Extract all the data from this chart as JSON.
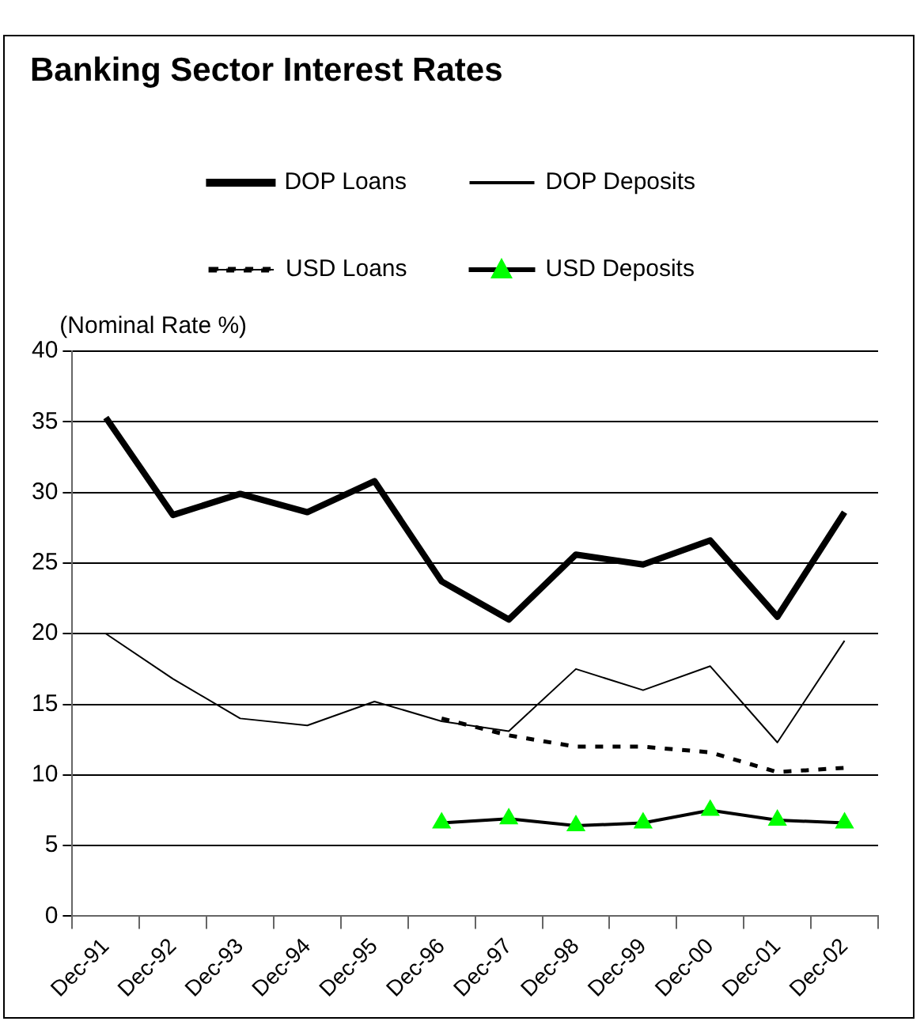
{
  "chart_data": {
    "type": "line",
    "title": "Banking Sector Interest Rates",
    "ylabel": "(Nominal Rate %)",
    "categories": [
      "Dec-91",
      "Dec-92",
      "Dec-93",
      "Dec-94",
      "Dec-95",
      "Dec-96",
      "Dec-97",
      "Dec-98",
      "Dec-99",
      "Dec-00",
      "Dec-01",
      "Dec-02"
    ],
    "series": [
      {
        "name": "DOP Loans",
        "color": "#000000",
        "line_style": "solid",
        "marker": "none",
        "values": [
          35.3,
          28.4,
          29.9,
          28.6,
          30.8,
          23.7,
          21.0,
          25.6,
          24.9,
          26.6,
          21.2,
          28.6
        ]
      },
      {
        "name": "DOP Deposits",
        "color": "#000000",
        "line_style": "solid",
        "marker": "none",
        "values": [
          20.0,
          16.8,
          14.0,
          13.5,
          15.2,
          13.8,
          13.1,
          17.5,
          16.0,
          17.7,
          12.3,
          19.5
        ]
      },
      {
        "name": "USD Loans",
        "color": "#000000",
        "line_style": "dashed",
        "marker": "none",
        "values": [
          null,
          null,
          null,
          null,
          null,
          14.0,
          12.8,
          12.0,
          12.0,
          11.6,
          10.2,
          10.5
        ]
      },
      {
        "name": "USD Deposits",
        "color": "#000000",
        "colors": [
          null,
          null,
          null,
          null,
          null,
          "#00ff00",
          "#00ff00",
          "#00ff00",
          "#00ff00",
          "#00ff00",
          "#00ff00",
          "#00ff00"
        ],
        "line_style": "solid",
        "marker": "triangle",
        "values": [
          null,
          null,
          null,
          null,
          null,
          6.6,
          6.9,
          6.4,
          6.6,
          7.5,
          6.8,
          6.6
        ]
      }
    ],
    "ylim": [
      0,
      40
    ],
    "yticks": [
      0,
      5,
      10,
      15,
      20,
      25,
      30,
      35,
      40
    ],
    "grid": "y",
    "legend": "top"
  }
}
